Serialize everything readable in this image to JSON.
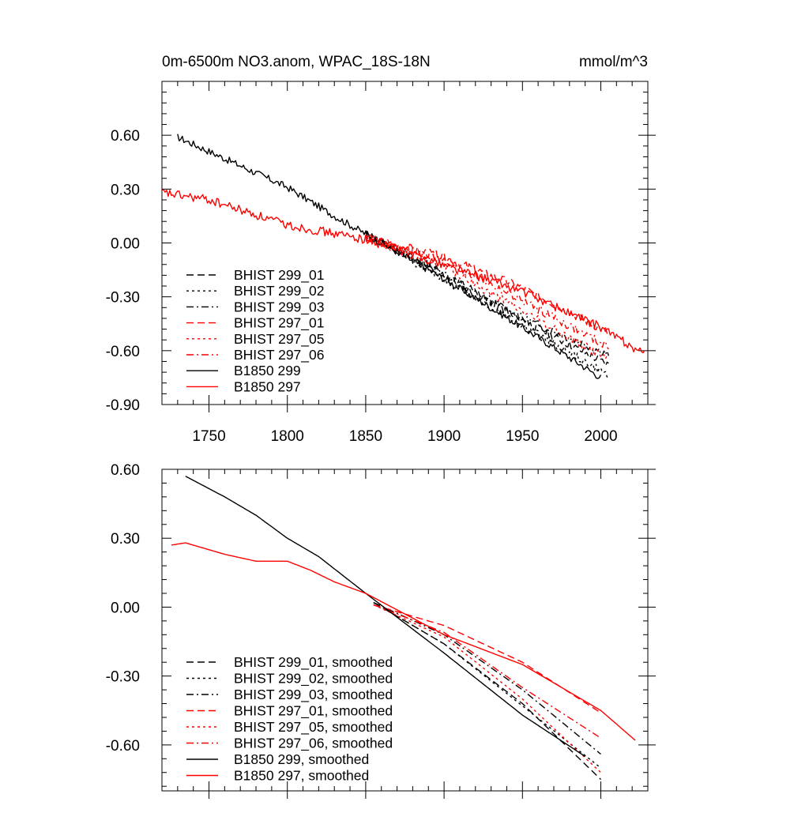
{
  "chart_data": [
    {
      "type": "line",
      "title": "0m-6500m NO3.anom, WPAC_18S-18N",
      "units": "mmol/m^3",
      "xlim": [
        1720,
        2030
      ],
      "ylim": [
        -0.9,
        0.9
      ],
      "xticks": [
        1750,
        1800,
        1850,
        1900,
        1950,
        2000
      ],
      "xtick_labels": [
        "1750",
        "1800",
        "1850",
        "1900",
        "1950",
        "2000"
      ],
      "yticks": [
        -0.9,
        -0.6,
        -0.3,
        0.0,
        0.3,
        0.6
      ],
      "ytick_labels": [
        "-0.90",
        "-0.60",
        "-0.30",
        "0.00",
        "0.30",
        "0.60"
      ],
      "legend_position": "lower-left",
      "series": [
        {
          "name": "BHIST 299_01",
          "color": "#000000",
          "dash": "dashed",
          "start": 1850,
          "end": 2005,
          "anchors": [
            [
              1850,
              0.05
            ],
            [
              1900,
              -0.18
            ],
            [
              1950,
              -0.43
            ],
            [
              2005,
              -0.68
            ]
          ],
          "amp": 0.025,
          "seed": 11
        },
        {
          "name": "BHIST 299_02",
          "color": "#000000",
          "dash": "dotted",
          "start": 1850,
          "end": 2005,
          "anchors": [
            [
              1850,
              0.05
            ],
            [
              1900,
              -0.2
            ],
            [
              1950,
              -0.46
            ],
            [
              2005,
              -0.74
            ]
          ],
          "amp": 0.025,
          "seed": 12
        },
        {
          "name": "BHIST 299_03",
          "color": "#000000",
          "dash": "dashdot",
          "start": 1850,
          "end": 2005,
          "anchors": [
            [
              1850,
              0.05
            ],
            [
              1900,
              -0.17
            ],
            [
              1950,
              -0.42
            ],
            [
              2005,
              -0.62
            ]
          ],
          "amp": 0.025,
          "seed": 13
        },
        {
          "name": "BHIST 297_01",
          "color": "#ff0000",
          "dash": "dashed",
          "start": 1850,
          "end": 2005,
          "anchors": [
            [
              1850,
              0.03
            ],
            [
              1900,
              -0.08
            ],
            [
              1950,
              -0.25
            ],
            [
              2005,
              -0.5
            ]
          ],
          "amp": 0.025,
          "seed": 14
        },
        {
          "name": "BHIST 297_05",
          "color": "#ff0000",
          "dash": "dotted",
          "start": 1850,
          "end": 2005,
          "anchors": [
            [
              1850,
              0.03
            ],
            [
              1900,
              -0.13
            ],
            [
              1950,
              -0.38
            ],
            [
              2005,
              -0.65
            ]
          ],
          "amp": 0.025,
          "seed": 15
        },
        {
          "name": "BHIST 297_06",
          "color": "#ff0000",
          "dash": "dashdot",
          "start": 1850,
          "end": 2005,
          "anchors": [
            [
              1850,
              0.03
            ],
            [
              1900,
              -0.1
            ],
            [
              1950,
              -0.32
            ],
            [
              2005,
              -0.58
            ]
          ],
          "amp": 0.025,
          "seed": 16
        },
        {
          "name": "B1850 299",
          "color": "#000000",
          "dash": "solid",
          "start": 1730,
          "end": 2000,
          "anchors": [
            [
              1730,
              0.59
            ],
            [
              1760,
              0.47
            ],
            [
              1800,
              0.31
            ],
            [
              1830,
              0.15
            ],
            [
              1850,
              0.05
            ],
            [
              1900,
              -0.2
            ],
            [
              1950,
              -0.47
            ],
            [
              2000,
              -0.75
            ]
          ],
          "amp": 0.02,
          "seed": 17
        },
        {
          "name": "B1850 297",
          "color": "#ff0000",
          "dash": "solid",
          "start": 1720,
          "end": 2028,
          "anchors": [
            [
              1720,
              0.28
            ],
            [
              1750,
              0.24
            ],
            [
              1800,
              0.1
            ],
            [
              1850,
              0.02
            ],
            [
              1900,
              -0.12
            ],
            [
              1950,
              -0.27
            ],
            [
              2000,
              -0.47
            ],
            [
              2028,
              -0.62
            ]
          ],
          "amp": 0.025,
          "seed": 18
        }
      ]
    },
    {
      "type": "line",
      "title": "",
      "units": "",
      "xlim": [
        1720,
        2030
      ],
      "ylim": [
        -0.8,
        0.6
      ],
      "xticks": [
        1750,
        1800,
        1850,
        1900,
        1950,
        2000
      ],
      "xtick_labels": [
        "",
        "",
        "",
        "",
        "",
        ""
      ],
      "yticks": [
        -0.6,
        -0.3,
        0.0,
        0.3,
        0.6
      ],
      "ytick_labels": [
        "-0.60",
        "-0.30",
        "0.00",
        "0.30",
        "0.60"
      ],
      "legend_position": "lower-left",
      "series": [
        {
          "name": "BHIST 299_01, smoothed",
          "color": "#000000",
          "dash": "dashed",
          "start": 1855,
          "end": 2000,
          "anchors": [
            [
              1855,
              0.02
            ],
            [
              1900,
              -0.16
            ],
            [
              1950,
              -0.42
            ],
            [
              2000,
              -0.75
            ]
          ]
        },
        {
          "name": "BHIST 299_02, smoothed",
          "color": "#000000",
          "dash": "dotted",
          "start": 1855,
          "end": 2000,
          "anchors": [
            [
              1855,
              0.02
            ],
            [
              1900,
              -0.16
            ],
            [
              1950,
              -0.43
            ],
            [
              2000,
              -0.7
            ]
          ]
        },
        {
          "name": "BHIST 299_03, smoothed",
          "color": "#000000",
          "dash": "dashdot",
          "start": 1855,
          "end": 2000,
          "anchors": [
            [
              1855,
              0.02
            ],
            [
              1900,
              -0.12
            ],
            [
              1950,
              -0.36
            ],
            [
              2000,
              -0.64
            ]
          ]
        },
        {
          "name": "BHIST 297_01, smoothed",
          "color": "#ff0000",
          "dash": "dashed",
          "start": 1855,
          "end": 2000,
          "anchors": [
            [
              1855,
              0.01
            ],
            [
              1890,
              -0.06
            ],
            [
              1900,
              -0.08
            ],
            [
              1950,
              -0.24
            ],
            [
              2000,
              -0.46
            ]
          ]
        },
        {
          "name": "BHIST 297_05, smoothed",
          "color": "#ff0000",
          "dash": "dotted",
          "start": 1855,
          "end": 2000,
          "anchors": [
            [
              1855,
              0.01
            ],
            [
              1900,
              -0.13
            ],
            [
              1950,
              -0.4
            ],
            [
              2000,
              -0.72
            ]
          ]
        },
        {
          "name": "BHIST 297_06, smoothed",
          "color": "#ff0000",
          "dash": "dashdot",
          "start": 1855,
          "end": 2000,
          "anchors": [
            [
              1855,
              0.01
            ],
            [
              1900,
              -0.11
            ],
            [
              1950,
              -0.35
            ],
            [
              2000,
              -0.57
            ]
          ]
        },
        {
          "name": "B1850 299, smoothed",
          "color": "#000000",
          "dash": "solid",
          "start": 1735,
          "end": 1990,
          "anchors": [
            [
              1735,
              0.57
            ],
            [
              1760,
              0.48
            ],
            [
              1780,
              0.4
            ],
            [
              1800,
              0.3
            ],
            [
              1820,
              0.22
            ],
            [
              1850,
              0.06
            ],
            [
              1900,
              -0.2
            ],
            [
              1950,
              -0.47
            ],
            [
              1990,
              -0.65
            ]
          ]
        },
        {
          "name": "B1850 297, smoothed",
          "color": "#ff0000",
          "dash": "solid",
          "start": 1726,
          "end": 2022,
          "anchors": [
            [
              1726,
              0.27
            ],
            [
              1735,
              0.28
            ],
            [
              1760,
              0.23
            ],
            [
              1780,
              0.2
            ],
            [
              1800,
              0.2
            ],
            [
              1815,
              0.16
            ],
            [
              1830,
              0.11
            ],
            [
              1850,
              0.06
            ],
            [
              1900,
              -0.12
            ],
            [
              1950,
              -0.25
            ],
            [
              2000,
              -0.45
            ],
            [
              2022,
              -0.58
            ]
          ]
        }
      ]
    }
  ]
}
